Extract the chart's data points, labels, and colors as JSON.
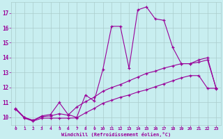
{
  "xlabel": "Windchill (Refroidissement éolien,°C)",
  "bg_color": "#c8eef0",
  "line_color": "#990099",
  "grid_color": "#aacccc",
  "text_color": "#990099",
  "xlim": [
    -0.5,
    23.5
  ],
  "ylim": [
    9.5,
    17.7
  ],
  "xticks": [
    0,
    1,
    2,
    3,
    4,
    5,
    6,
    7,
    8,
    9,
    10,
    11,
    12,
    13,
    14,
    15,
    16,
    17,
    18,
    19,
    20,
    21,
    22,
    23
  ],
  "yticks": [
    10,
    11,
    12,
    13,
    14,
    15,
    16,
    17
  ],
  "curve1_x": [
    0,
    1,
    2,
    3,
    4,
    5,
    6,
    7,
    8,
    9,
    10,
    11,
    12,
    13,
    14,
    15,
    16,
    17,
    18,
    19,
    20,
    21,
    22,
    23
  ],
  "curve1_y": [
    10.6,
    10.0,
    9.8,
    10.1,
    10.2,
    11.0,
    10.2,
    10.0,
    11.5,
    11.1,
    13.2,
    16.1,
    16.1,
    13.3,
    17.2,
    17.4,
    16.6,
    16.5,
    14.7,
    13.6,
    13.6,
    13.85,
    14.0,
    11.9
  ],
  "curve2_x": [
    0,
    1,
    2,
    3,
    4,
    5,
    6,
    7,
    8,
    9,
    10,
    11,
    12,
    13,
    14,
    15,
    16,
    17,
    18,
    19,
    20,
    21,
    22,
    23
  ],
  "curve2_y": [
    10.55,
    10.0,
    9.8,
    10.05,
    10.1,
    10.25,
    10.15,
    10.7,
    11.05,
    11.35,
    11.75,
    12.0,
    12.2,
    12.45,
    12.7,
    12.95,
    13.1,
    13.3,
    13.45,
    13.6,
    13.6,
    13.7,
    13.85,
    11.95
  ],
  "curve3_x": [
    0,
    1,
    2,
    3,
    4,
    5,
    6,
    7,
    8,
    9,
    10,
    11,
    12,
    13,
    14,
    15,
    16,
    17,
    18,
    19,
    20,
    21,
    22,
    23
  ],
  "curve3_y": [
    10.55,
    9.95,
    9.75,
    9.95,
    9.95,
    9.95,
    9.95,
    9.97,
    10.3,
    10.6,
    10.95,
    11.15,
    11.35,
    11.5,
    11.7,
    11.85,
    12.05,
    12.25,
    12.45,
    12.65,
    12.8,
    12.8,
    11.95,
    11.95
  ]
}
